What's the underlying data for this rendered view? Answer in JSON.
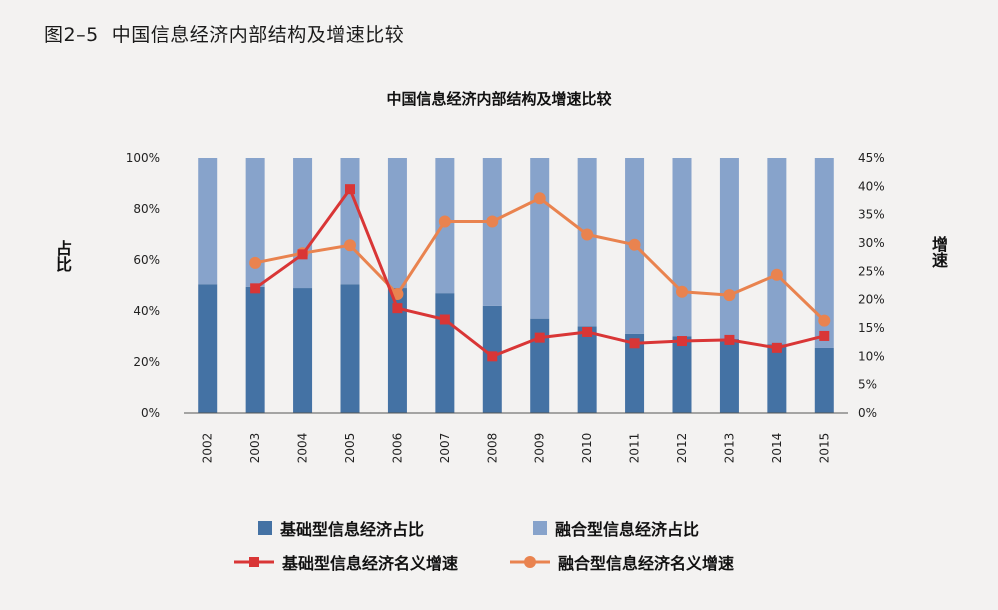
{
  "figure_caption": "图2–5  中国信息经济内部结构及增速比较",
  "colors": {
    "base_bar": "#4472a4",
    "fusion_bar": "#87a3cb",
    "base_line": "#d93636",
    "fusion_line": "#e9834f",
    "axis": "#555555"
  },
  "chart_data": {
    "type": "bar",
    "title": "中国信息经济内部结构及增速比较",
    "ylabel": "占比",
    "y2label": "增速",
    "ylim": [
      0,
      100
    ],
    "y2lim": [
      0,
      45
    ],
    "y_ticks": [
      "0%",
      "20%",
      "40%",
      "60%",
      "80%",
      "100%"
    ],
    "y2_ticks": [
      "0%",
      "5%",
      "10%",
      "15%",
      "20%",
      "25%",
      "30%",
      "35%",
      "40%",
      "45%"
    ],
    "categories": [
      "2002",
      "2003",
      "2004",
      "2005",
      "2006",
      "2007",
      "2008",
      "2009",
      "2010",
      "2011",
      "2012",
      "2013",
      "2014",
      "2015"
    ],
    "legend_position": "bottom",
    "series": [
      {
        "name": "基础型信息经济占比",
        "type": "bar-stacked",
        "axis": "left",
        "values": [
          50.5,
          49.5,
          49,
          50.5,
          49,
          47,
          42,
          37,
          34,
          31,
          30,
          29,
          27,
          25.5
        ]
      },
      {
        "name": "融合型信息经济占比",
        "type": "bar-stacked",
        "axis": "left",
        "values": [
          49.5,
          50.5,
          51,
          49.5,
          51,
          53,
          58,
          63,
          66,
          69,
          70,
          71,
          73,
          74.5
        ]
      },
      {
        "name": "基础型信息经济名义增速",
        "type": "line",
        "marker": "square",
        "axis": "right",
        "values": [
          null,
          22,
          28,
          39.5,
          18.5,
          16.5,
          10,
          13.3,
          14.3,
          12.3,
          12.7,
          12.9,
          11.5,
          13.6
        ]
      },
      {
        "name": "融合型信息经济名义增速",
        "type": "line",
        "marker": "circle",
        "axis": "right",
        "values": [
          null,
          26.5,
          28.2,
          29.6,
          21,
          33.8,
          33.8,
          37.9,
          31.5,
          29.7,
          21.4,
          20.8,
          24.4,
          16.3
        ]
      }
    ]
  }
}
